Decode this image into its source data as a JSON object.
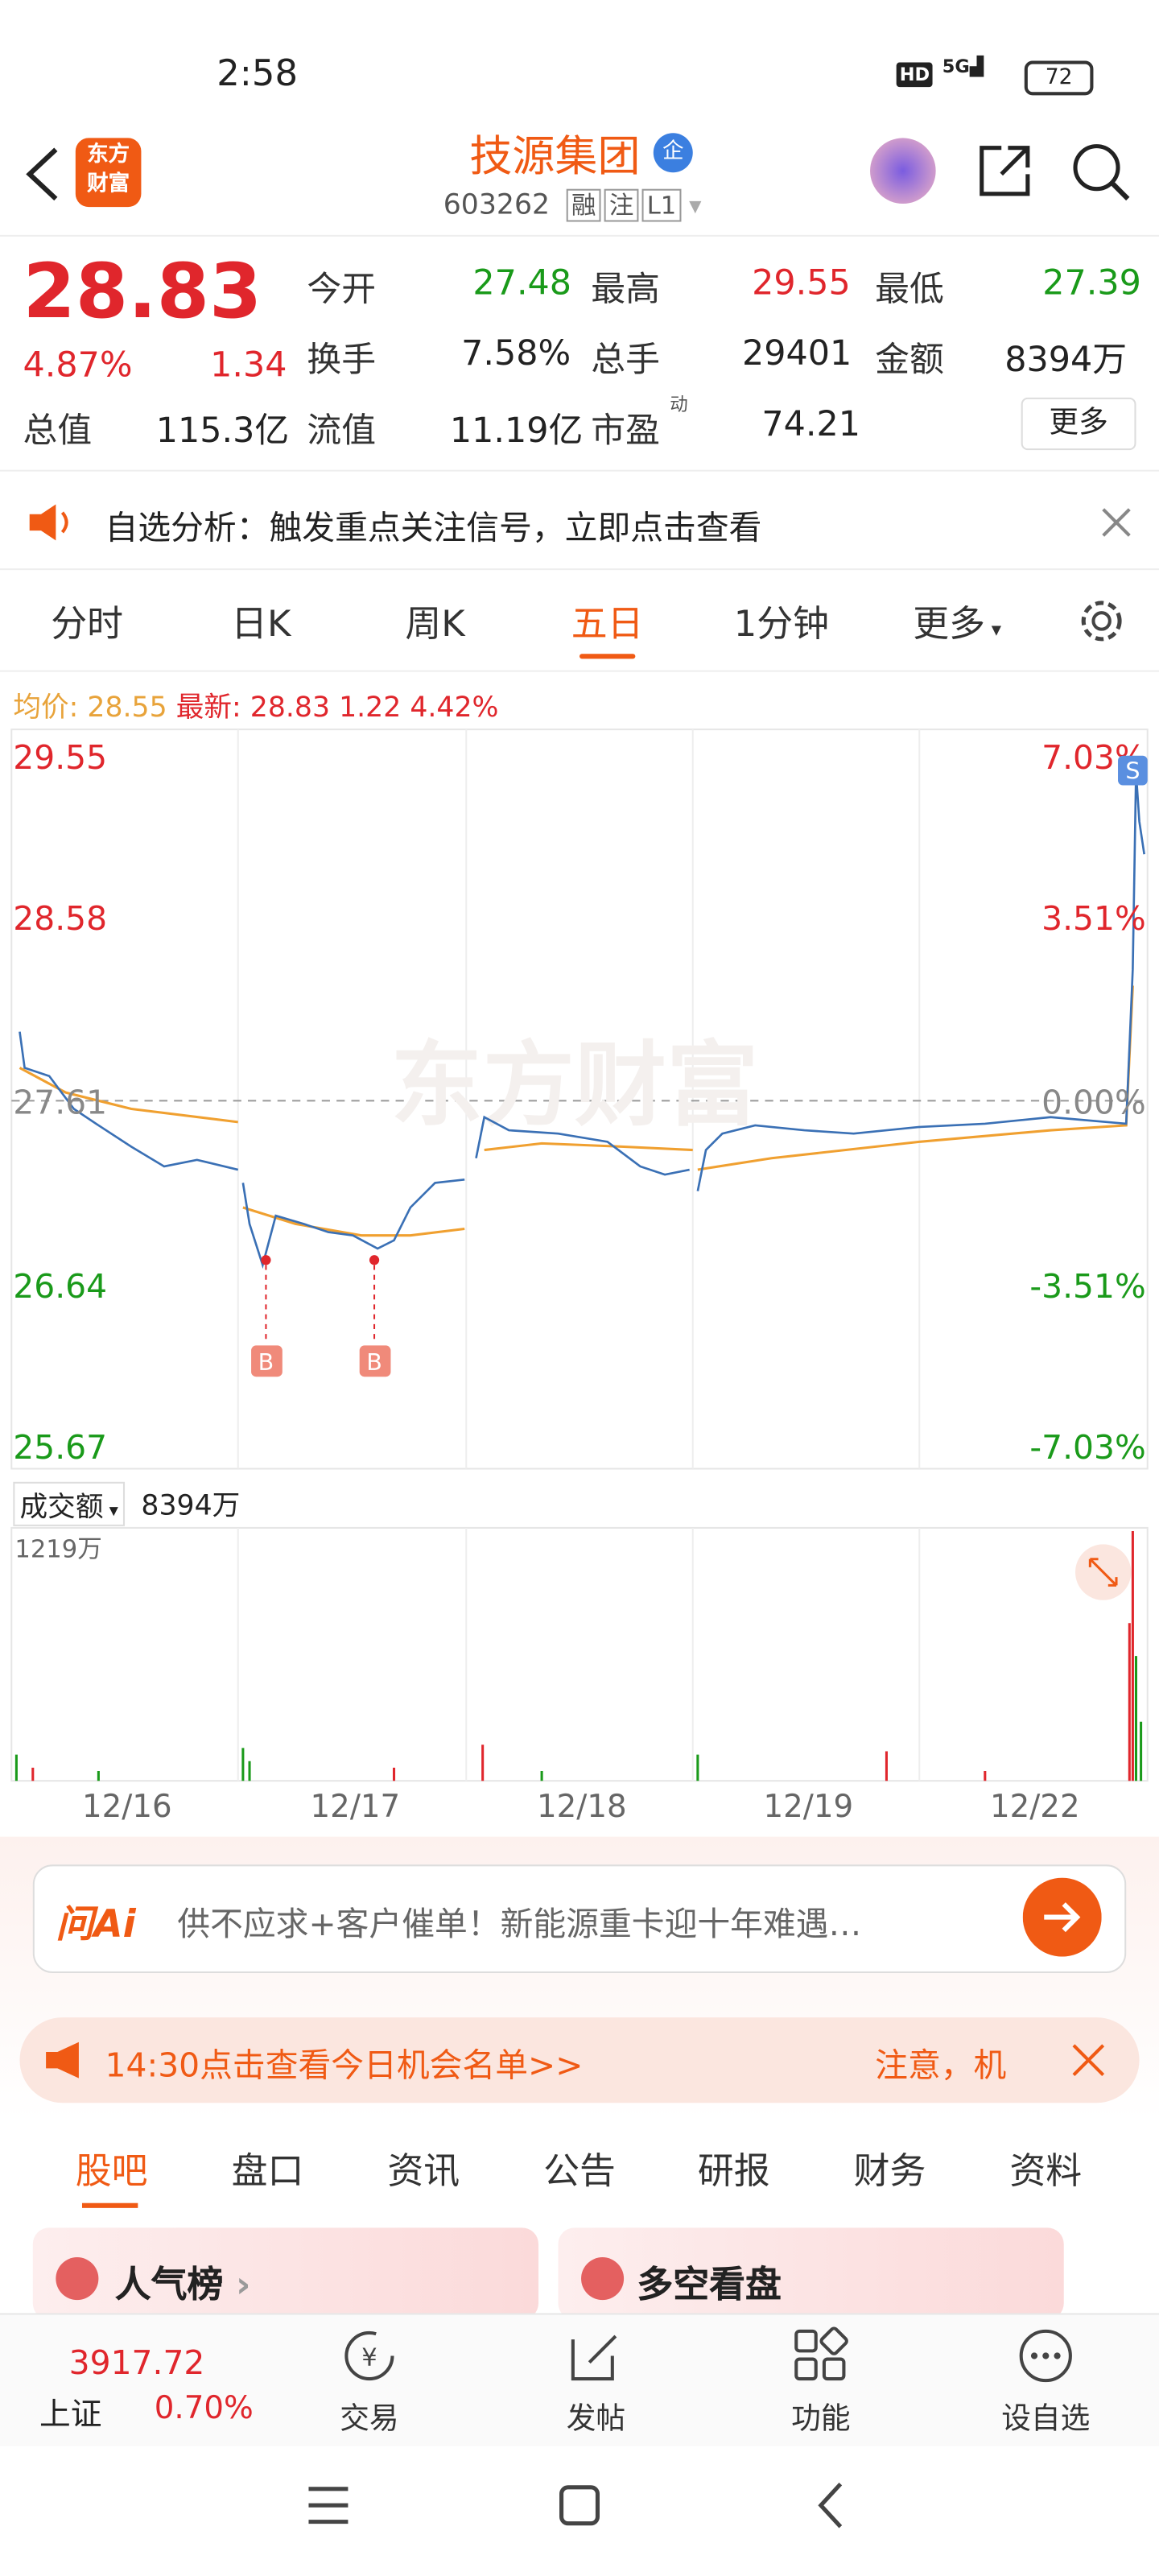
{
  "status": {
    "time": "2:58",
    "battery": "72"
  },
  "header": {
    "logo": [
      "东方",
      "财富"
    ],
    "title": "技源集团",
    "badge": "企",
    "code": "603262",
    "tags": [
      "融",
      "注",
      "L1"
    ]
  },
  "quote": {
    "price": "28.83",
    "pct": "4.87%",
    "change": "1.34",
    "fields": [
      {
        "label": "今开",
        "value": "27.48"
      },
      {
        "label": "最高",
        "value": "29.55"
      },
      {
        "label": "最低",
        "value": "27.39"
      },
      {
        "label": "换手",
        "value": "7.58%"
      },
      {
        "label": "总手",
        "value": "29401"
      },
      {
        "label": "金额",
        "value": "8394万"
      },
      {
        "label": "总值",
        "value": "115.3亿"
      },
      {
        "label": "流值",
        "value": "11.19亿"
      },
      {
        "label": "市盈",
        "sup": "动",
        "value": "74.21"
      }
    ],
    "more": "更多"
  },
  "notice": "自选分析：触发重点关注信号，立即点击查看",
  "tabs": {
    "items": [
      "分时",
      "日K",
      "周K",
      "五日",
      "1分钟",
      "更多"
    ],
    "active": 3
  },
  "info": {
    "avg_label": "均价:",
    "avg": "28.55",
    "last_label": "最新:",
    "last": "28.83",
    "change": "1.22",
    "pct": "4.42%"
  },
  "chart": {
    "left_labels": [
      "29.55",
      "28.58",
      "27.61",
      "26.64",
      "25.67"
    ],
    "right_labels": [
      "7.03%",
      "3.51%",
      "0.00%",
      "-3.51%",
      "-7.03%"
    ],
    "markers": [
      "B",
      "B",
      "S"
    ],
    "watermark": "东方财富"
  },
  "volume": {
    "selector": "成交额",
    "total": "8394万",
    "max": "1219万",
    "dates": [
      "12/16",
      "12/17",
      "12/18",
      "12/19",
      "12/22"
    ]
  },
  "ai": {
    "logo": "问Ai",
    "text": "供不应求+客户催单！新能源重卡迎十年难遇…"
  },
  "banner": {
    "text": "14:30点击查看今日机会名单>>",
    "tail": "注意，机"
  },
  "sections": {
    "items": [
      "股吧",
      "盘口",
      "资讯",
      "公告",
      "研报",
      "财务",
      "资料"
    ],
    "active": 0,
    "cards": [
      "人气榜",
      "多空看盘"
    ]
  },
  "footer": {
    "index": "3917.72",
    "index_name": "上证",
    "index_pct": "0.70%",
    "nav": [
      "交易",
      "发帖",
      "功能",
      "设自选"
    ]
  }
}
